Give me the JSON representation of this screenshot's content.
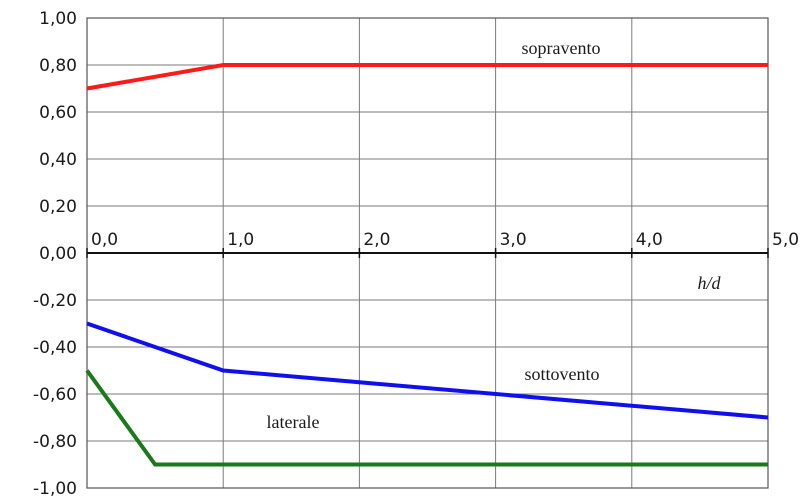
{
  "chart_data": {
    "type": "line",
    "title": "",
    "xlabel": "h/d",
    "ylabel": "",
    "xlim": [
      0,
      5
    ],
    "ylim": [
      -1,
      1
    ],
    "x_ticks": [
      "0,0",
      "1,0",
      "2,0",
      "3,0",
      "4,0",
      "5,0"
    ],
    "y_ticks": [
      "1,00",
      "0,80",
      "0,60",
      "0,40",
      "0,20",
      "0,00",
      "-0,20",
      "-0,40",
      "-0,60",
      "-0,80",
      "-1,00"
    ],
    "grid": true,
    "series": [
      {
        "name": "sopravento",
        "color": "#ff1a1a",
        "x": [
          0,
          1,
          5
        ],
        "y": [
          0.7,
          0.8,
          0.8
        ]
      },
      {
        "name": "sottovento",
        "color": "#1010ee",
        "x": [
          0,
          1,
          5
        ],
        "y": [
          -0.3,
          -0.5,
          -0.7
        ]
      },
      {
        "name": "laterale",
        "color": "#1a7a1a",
        "x": [
          0,
          0.5,
          5
        ],
        "y": [
          -0.5,
          -0.9,
          -0.9
        ]
      }
    ]
  }
}
